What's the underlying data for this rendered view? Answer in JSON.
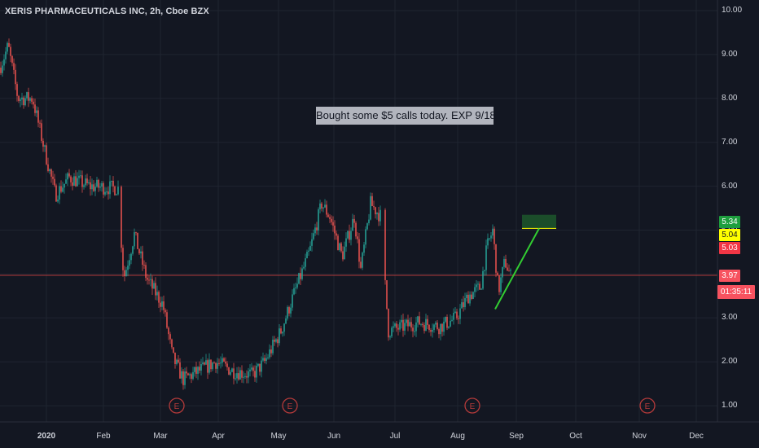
{
  "header": {
    "title": "XERIS PHARMACEUTICALS INC, 2h, Cboe BZX"
  },
  "annotation": {
    "text": "Bought some $5 calls today. EXP 9/18"
  },
  "price_tags": [
    {
      "value": "5.34",
      "bg": "#1e9e3e",
      "fg": "#ffffff"
    },
    {
      "value": "5.04",
      "bg": "#ffff00",
      "fg": "#131722"
    },
    {
      "value": "5.03",
      "bg": "#f23645",
      "fg": "#ffffff"
    },
    {
      "value": "3.97",
      "bg": "#f7525f",
      "fg": "#ffffff"
    }
  ],
  "countdown": {
    "value": "01:35:11",
    "bg": "#f7525f"
  },
  "colors": {
    "background": "#131722",
    "grid": "#1f2430",
    "up": "#26a69a",
    "down": "#ef5350",
    "hline": "#b23a3a",
    "trendline": "#32cd32",
    "earnings": "#b33a3a",
    "box": "#1b4d2a"
  },
  "chart_data": {
    "type": "candlestick",
    "title": "XERIS PHARMACEUTICALS INC, 2h, Cboe BZX",
    "y_ticks": [
      "10.00",
      "9.00",
      "8.00",
      "7.00",
      "6.00",
      "5.00",
      "4.00",
      "3.00",
      "2.00",
      "1.00"
    ],
    "ylim": [
      0.7,
      10.3
    ],
    "x_ticks": [
      "2020",
      "Feb",
      "Mar",
      "Apr",
      "May",
      "Jun",
      "Jul",
      "Aug",
      "Sep",
      "Oct",
      "Nov",
      "Dec"
    ],
    "x_tick_bold": "2020",
    "earnings_marker_label": "E",
    "earnings_dates": [
      "Mar",
      "May",
      "Aug",
      "Nov"
    ],
    "horizontal_line": 3.97,
    "price_path": [
      [
        "Dec",
        8.7
      ],
      [
        "Dec",
        9.2
      ],
      [
        "Jan",
        8.0
      ],
      [
        "Jan",
        7.8
      ],
      [
        "Jan",
        6.8
      ],
      [
        "Jan",
        5.9
      ],
      [
        "Jan",
        6.2
      ],
      [
        "Feb",
        6.1
      ],
      [
        "Feb",
        5.2
      ],
      [
        "Feb",
        3.9
      ],
      [
        "Mar",
        3.3
      ],
      [
        "Mar",
        2.0
      ],
      [
        "Mar",
        1.6
      ],
      [
        "Apr",
        1.9
      ],
      [
        "Apr",
        1.8
      ],
      [
        "May",
        1.7
      ],
      [
        "May",
        2.6
      ],
      [
        "May",
        3.5
      ],
      [
        "Jun",
        5.5
      ],
      [
        "Jun",
        5.0
      ],
      [
        "Jun",
        5.3
      ],
      [
        "Jul",
        2.6
      ],
      [
        "Jul",
        2.9
      ],
      [
        "Aug",
        2.9
      ],
      [
        "Aug",
        3.5
      ],
      [
        "Aug",
        4.9
      ],
      [
        "Aug",
        3.9
      ]
    ],
    "trendline": [
      3.2,
      5.04
    ],
    "target_box": [
      5.04,
      5.34
    ]
  }
}
